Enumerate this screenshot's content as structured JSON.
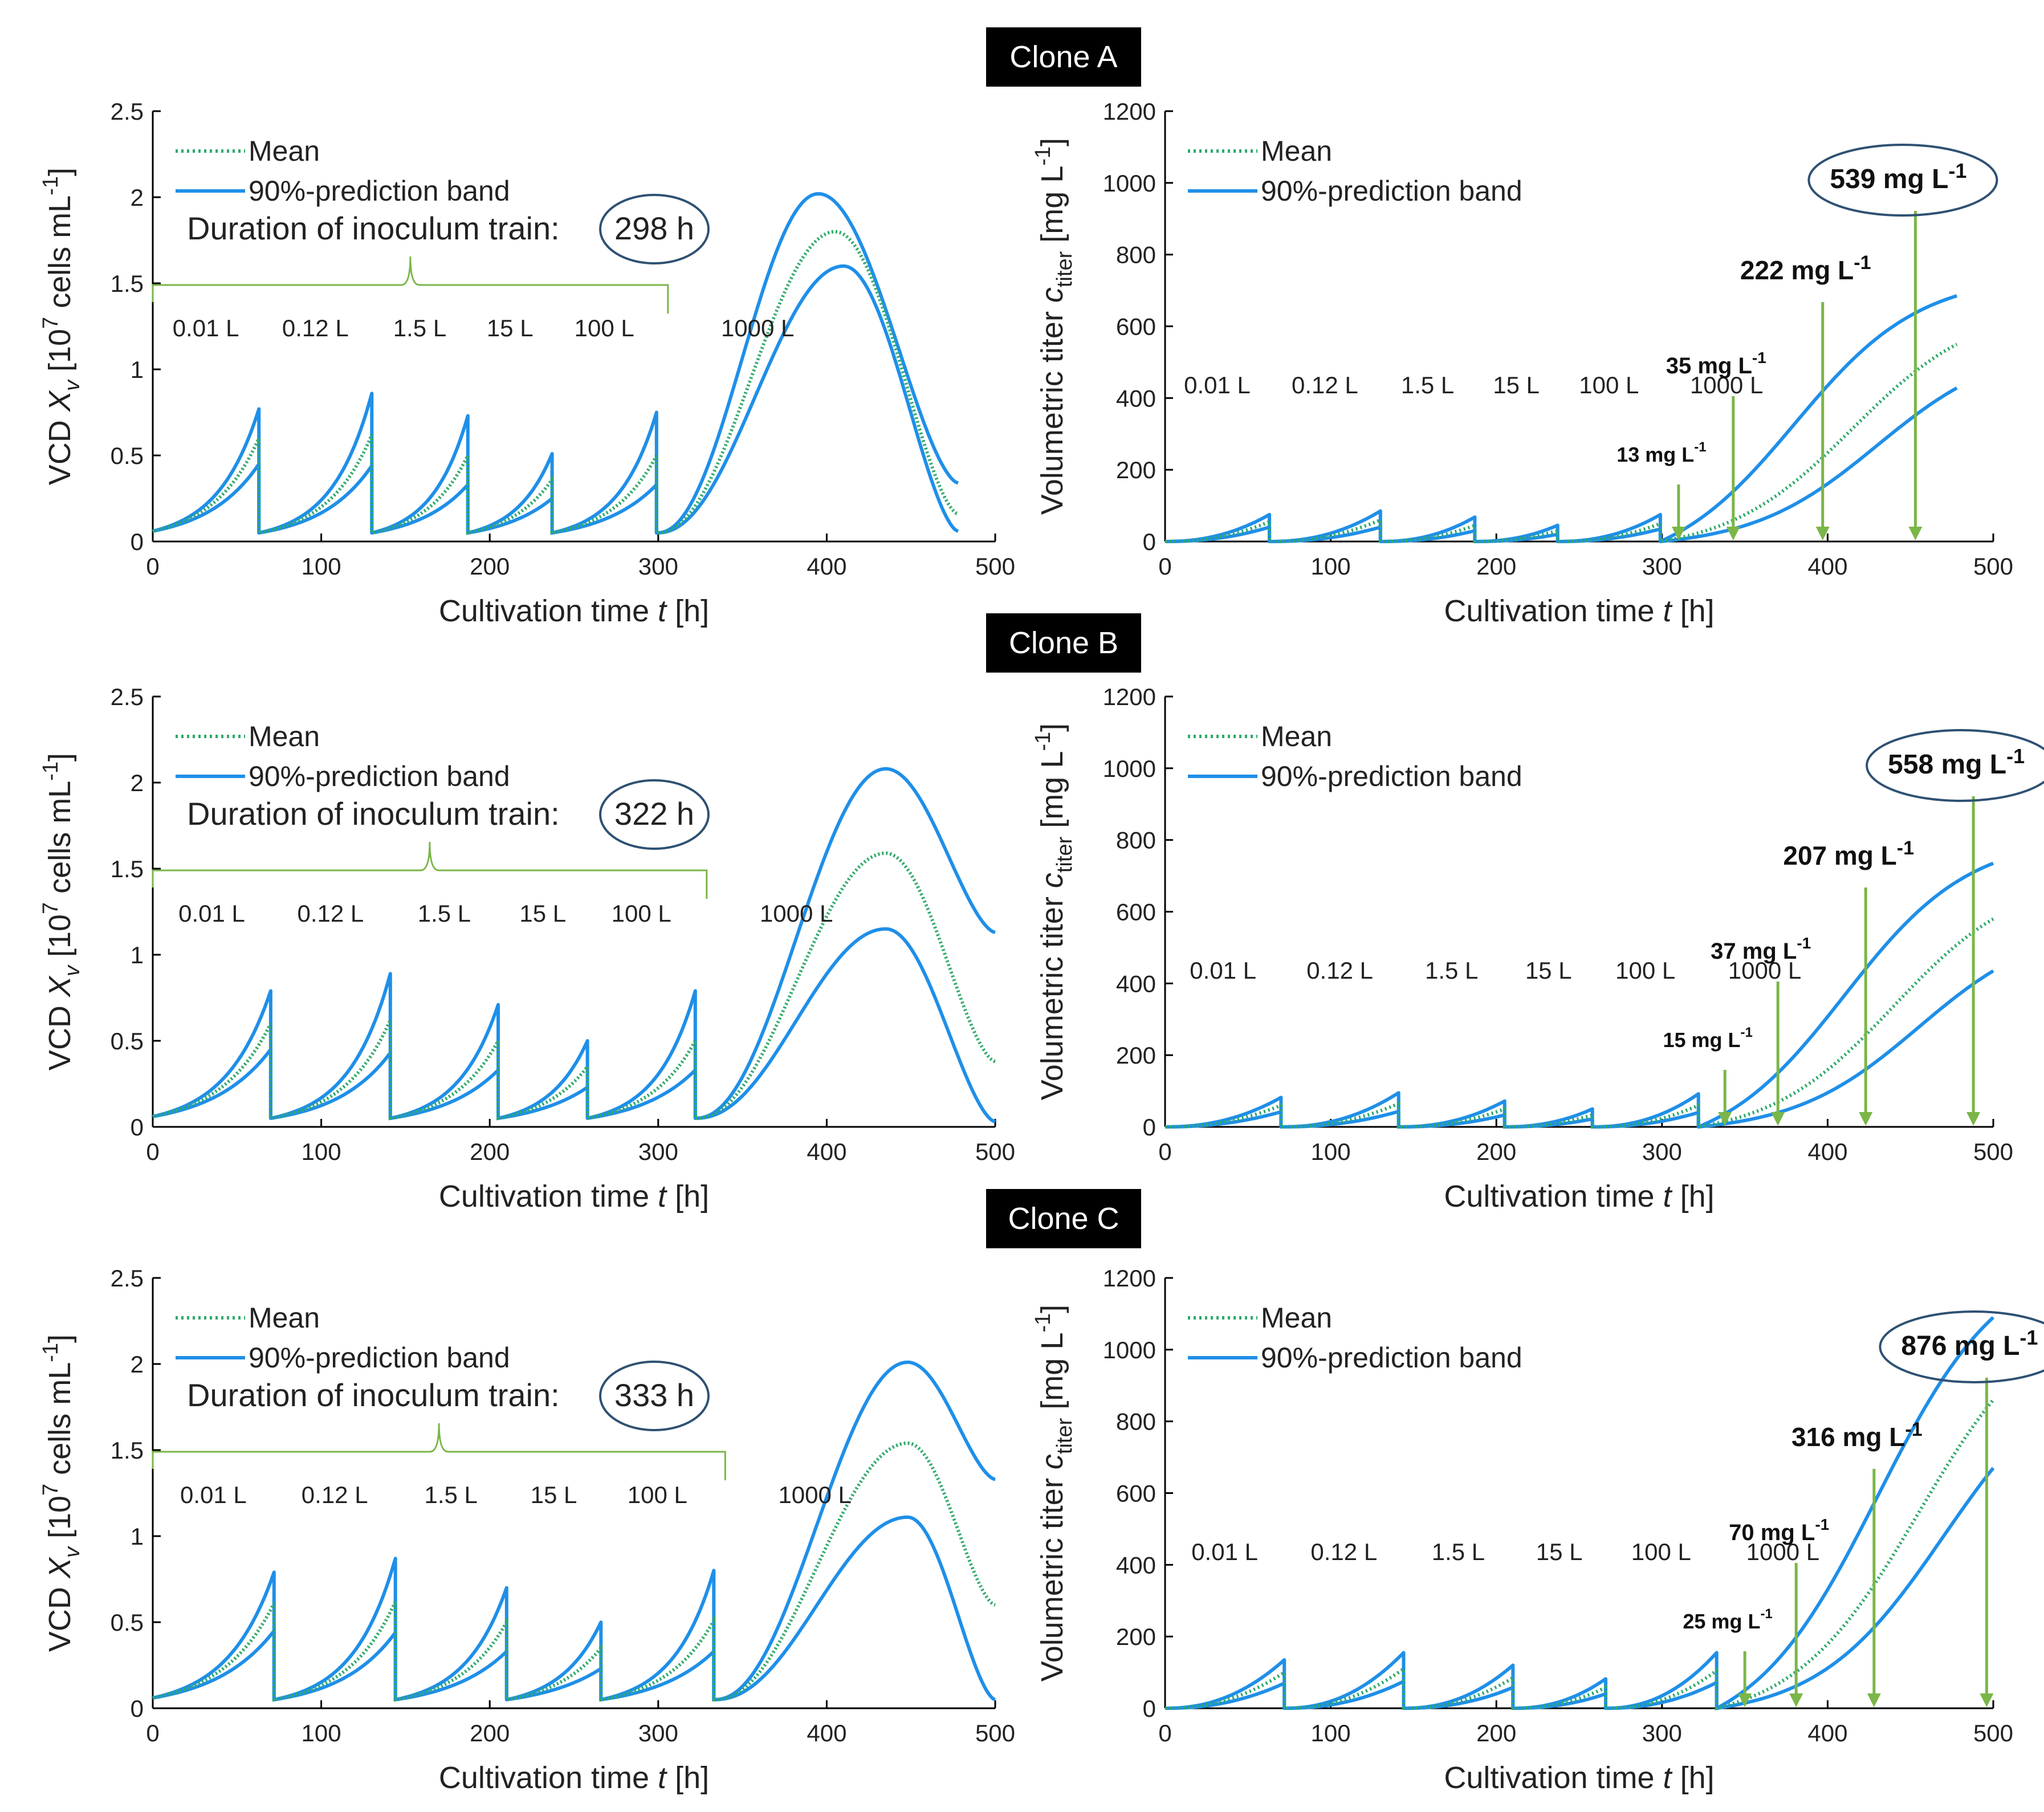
{
  "legend": {
    "mean": "Mean",
    "band": "90%-prediction band"
  },
  "colors": {
    "mean": "#2eaa6a",
    "band": "#1f8fe8",
    "arrow": "#7ab648",
    "ellipse": "#2f5173",
    "brace": "#7ab648",
    "clone_bg": "#000000"
  },
  "labels": {
    "xlabel": "Cultivation time",
    "xvar": "t",
    "xunit": "[h]",
    "vcd_ylabel": "VCD",
    "vcd_var": "X",
    "vcd_sub": "v",
    "vcd_unit_pre": "[10",
    "vcd_unit_exp": "7",
    "vcd_unit_mid": " cells mL",
    "vcd_unit_exp2": "-1",
    "vcd_unit_post": "]",
    "titer_ylabel": "Volumetric titer",
    "titer_var": "c",
    "titer_sub": "titer",
    "titer_unit_pre": "[mg L",
    "titer_unit_exp": "-1",
    "titer_unit_post": "]",
    "duration_text": "Duration of inoculum train:",
    "ann_exp": "-1"
  },
  "stages": [
    "0.01 L",
    "0.12 L",
    "1.5 L",
    "15 L",
    "100 L",
    "1000 L"
  ],
  "chart_data": [
    {
      "clone": "Clone A",
      "vcd": {
        "type": "line",
        "xlim": [
          0,
          500
        ],
        "ylim": [
          0,
          2.5
        ],
        "xticks": [
          0,
          100,
          200,
          300,
          400,
          500
        ],
        "yticks": [
          0,
          0.5,
          1,
          1.5,
          2,
          2.5
        ],
        "ytick_labels": [
          "0",
          "0.5",
          "1",
          "1.5",
          "2",
          "2.5"
        ],
        "transfers": [
          63,
          130,
          187,
          237,
          299
        ],
        "passage_peaks": {
          "upper": [
            0.77,
            0.86,
            0.73,
            0.51,
            0.75
          ],
          "mean": [
            0.6,
            0.62,
            0.5,
            0.36,
            0.5
          ],
          "lower": [
            0.45,
            0.44,
            0.33,
            0.25,
            0.33
          ]
        },
        "start": 0.06,
        "reset": 0.05,
        "final": {
          "upper": {
            "peak_t": 395,
            "peak": 2.02,
            "end": 0.34
          },
          "mean": {
            "peak_t": 405,
            "peak": 1.8,
            "end": 0.16
          },
          "lower": {
            "peak_t": 410,
            "peak": 1.6,
            "end": 0.06
          },
          "t_end": 478
        },
        "duration_h": "298 h"
      },
      "titer": {
        "type": "line",
        "xlim": [
          0,
          500
        ],
        "ylim": [
          0,
          1200
        ],
        "xticks": [
          0,
          100,
          200,
          300,
          400,
          500
        ],
        "yticks": [
          0,
          200,
          400,
          600,
          800,
          1000,
          1200
        ],
        "ytick_labels": [
          "0",
          "200",
          "400",
          "600",
          "800",
          "1000",
          "1200"
        ],
        "transfers": [
          63,
          130,
          187,
          237,
          299
        ],
        "passage_peaks": {
          "upper": [
            75,
            85,
            68,
            45,
            75
          ],
          "mean": [
            55,
            60,
            45,
            30,
            50
          ],
          "lower": [
            40,
            40,
            30,
            20,
            35
          ]
        },
        "final": {
          "t_end": 478,
          "upper": 685,
          "mean": 550,
          "lower": 428,
          "mid_upper": 380,
          "mid_mean": 415,
          "mid_lower": 430
        },
        "annotations": [
          {
            "label": "13 mg L",
            "t": 310
          },
          {
            "label": "35 mg L",
            "t": 343
          },
          {
            "label": "222 mg L",
            "t": 397
          },
          {
            "label": "539 mg L",
            "t": 453,
            "circled": true
          }
        ]
      }
    },
    {
      "clone": "Clone B",
      "vcd": {
        "type": "line",
        "xlim": [
          0,
          500
        ],
        "ylim": [
          0,
          2.5
        ],
        "xticks": [
          0,
          100,
          200,
          300,
          400,
          500
        ],
        "yticks": [
          0,
          0.5,
          1,
          1.5,
          2,
          2.5
        ],
        "ytick_labels": [
          "0",
          "0.5",
          "1",
          "1.5",
          "2",
          "2.5"
        ],
        "transfers": [
          70,
          141,
          205,
          258,
          322
        ],
        "passage_peaks": {
          "upper": [
            0.79,
            0.89,
            0.71,
            0.5,
            0.79
          ],
          "mean": [
            0.6,
            0.62,
            0.5,
            0.35,
            0.5
          ],
          "lower": [
            0.45,
            0.43,
            0.33,
            0.23,
            0.33
          ]
        },
        "start": 0.06,
        "reset": 0.05,
        "final": {
          "upper": {
            "peak_t": 435,
            "peak": 2.08,
            "end": 1.13
          },
          "mean": {
            "peak_t": 435,
            "peak": 1.59,
            "end": 0.38
          },
          "lower": {
            "peak_t": 435,
            "peak": 1.15,
            "end": 0.03
          },
          "t_end": 500
        },
        "duration_h": "322 h"
      },
      "titer": {
        "type": "line",
        "xlim": [
          0,
          500
        ],
        "ylim": [
          0,
          1200
        ],
        "xticks": [
          0,
          100,
          200,
          300,
          400,
          500
        ],
        "yticks": [
          0,
          200,
          400,
          600,
          800,
          1000,
          1200
        ],
        "ytick_labels": [
          "0",
          "200",
          "400",
          "600",
          "800",
          "1000",
          "1200"
        ],
        "transfers": [
          70,
          141,
          205,
          258,
          322
        ],
        "passage_peaks": {
          "upper": [
            82,
            95,
            72,
            50,
            92
          ],
          "mean": [
            60,
            65,
            50,
            33,
            60
          ],
          "lower": [
            42,
            43,
            33,
            22,
            40
          ]
        },
        "final": {
          "t_end": 500,
          "upper": 735,
          "mean": 580,
          "lower": 435,
          "mid_upper": 410,
          "mid_mean": 440,
          "mid_lower": 455
        },
        "annotations": [
          {
            "label": "15 mg L",
            "t": 338
          },
          {
            "label": "37 mg L",
            "t": 370
          },
          {
            "label": "207 mg L",
            "t": 423
          },
          {
            "label": "558 mg L",
            "t": 488,
            "circled": true
          }
        ]
      }
    },
    {
      "clone": "Clone C",
      "vcd": {
        "type": "line",
        "xlim": [
          0,
          500
        ],
        "ylim": [
          0,
          2.5
        ],
        "xticks": [
          0,
          100,
          200,
          300,
          400,
          500
        ],
        "yticks": [
          0,
          0.5,
          1,
          1.5,
          2,
          2.5
        ],
        "ytick_labels": [
          "0",
          "0.5",
          "1",
          "1.5",
          "2",
          "2.5"
        ],
        "transfers": [
          72,
          144,
          210,
          266,
          333
        ],
        "passage_peaks": {
          "upper": [
            0.79,
            0.87,
            0.7,
            0.5,
            0.8
          ],
          "mean": [
            0.61,
            0.62,
            0.5,
            0.35,
            0.51
          ],
          "lower": [
            0.45,
            0.44,
            0.33,
            0.23,
            0.33
          ]
        },
        "start": 0.06,
        "reset": 0.05,
        "final": {
          "upper": {
            "peak_t": 448,
            "peak": 2.01,
            "end": 1.33
          },
          "mean": {
            "peak_t": 448,
            "peak": 1.54,
            "end": 0.6
          },
          "lower": {
            "peak_t": 448,
            "peak": 1.11,
            "end": 0.05
          },
          "t_end": 500
        },
        "duration_h": "333 h"
      },
      "titer": {
        "type": "line",
        "xlim": [
          0,
          500
        ],
        "ylim": [
          0,
          1200
        ],
        "xticks": [
          0,
          100,
          200,
          300,
          400,
          500
        ],
        "yticks": [
          0,
          200,
          400,
          600,
          800,
          1000,
          1200
        ],
        "ytick_labels": [
          "0",
          "200",
          "400",
          "600",
          "800",
          "1000",
          "1200"
        ],
        "transfers": [
          72,
          144,
          210,
          266,
          333
        ],
        "passage_peaks": {
          "upper": [
            135,
            155,
            120,
            82,
            155
          ],
          "mean": [
            100,
            110,
            85,
            58,
            105
          ],
          "lower": [
            70,
            75,
            58,
            40,
            72
          ]
        },
        "final": {
          "t_end": 500,
          "upper": 1090,
          "mean": 860,
          "lower": 670,
          "mid_upper": 430,
          "mid_mean": 455,
          "mid_lower": 470
        },
        "annotations": [
          {
            "label": "25 mg L",
            "t": 350
          },
          {
            "label": "70 mg L",
            "t": 381
          },
          {
            "label": "316 mg L",
            "t": 428
          },
          {
            "label": "876 mg L",
            "t": 496,
            "circled": true
          }
        ]
      }
    }
  ]
}
